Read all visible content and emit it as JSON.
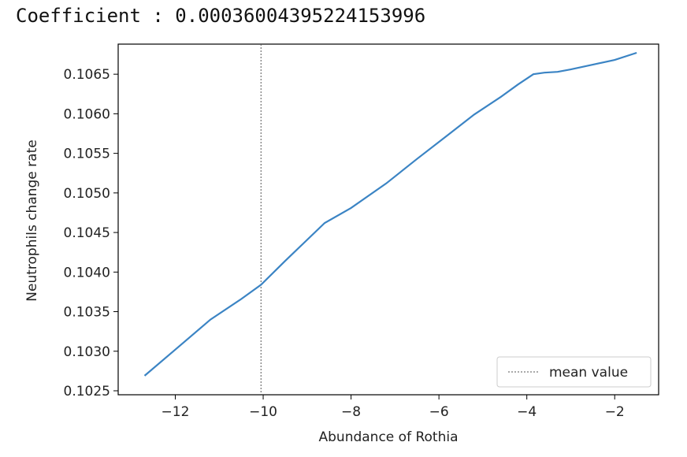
{
  "header": {
    "coefficient_text": "Coefficient : 0.00036004395224153996"
  },
  "chart_data": {
    "type": "line",
    "title": "",
    "xlabel": "Abundance of Rothia",
    "ylabel": "Neutrophils change rate",
    "xlim": [
      -13.3,
      -1.0
    ],
    "ylim": [
      0.10245,
      0.10688
    ],
    "x_ticks": [
      -12,
      -10,
      -8,
      -6,
      -4,
      -2
    ],
    "x_tick_labels": [
      "−12",
      "−10",
      "−8",
      "−6",
      "−4",
      "−2"
    ],
    "y_ticks": [
      0.1025,
      0.103,
      0.1035,
      0.104,
      0.1045,
      0.105,
      0.1055,
      0.106,
      0.1065
    ],
    "y_tick_labels": [
      "0.1025",
      "0.1030",
      "0.1035",
      "0.1040",
      "0.1045",
      "0.1050",
      "0.1055",
      "0.1060",
      "0.1065"
    ],
    "grid": false,
    "series": [
      {
        "color": "#3b84c4",
        "x": [
          -12.7,
          -12.0,
          -11.2,
          -10.5,
          -10.05,
          -9.5,
          -8.6,
          -8.0,
          -7.2,
          -6.5,
          -5.8,
          -5.2,
          -4.6,
          -4.2,
          -3.85,
          -3.6,
          -3.3,
          -3.0,
          -2.5,
          -2.0,
          -1.5
        ],
        "y": [
          0.10269,
          0.10302,
          0.1034,
          0.10366,
          0.10384,
          0.10414,
          0.10462,
          0.10481,
          0.10512,
          0.10543,
          0.10573,
          0.10599,
          0.10621,
          0.10637,
          0.1065,
          0.10652,
          0.10653,
          0.10656,
          0.10662,
          0.10668,
          0.10677
        ]
      }
    ],
    "mean_line": {
      "x": -10.05,
      "color": "#555555",
      "style": "dotted"
    },
    "legend": {
      "position": "lower right",
      "entries": [
        "mean value"
      ]
    }
  }
}
